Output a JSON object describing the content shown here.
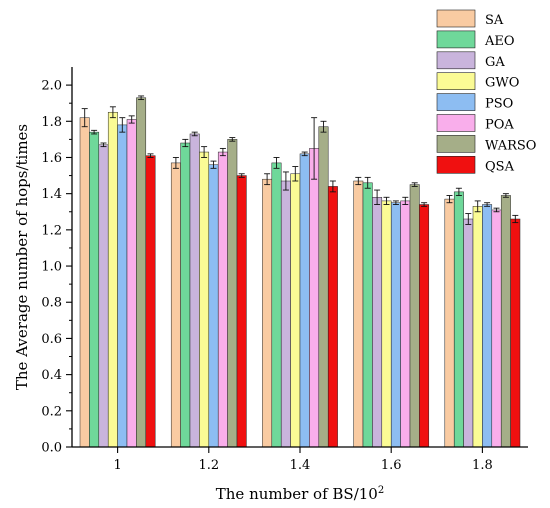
{
  "chart_data": {
    "type": "bar",
    "title": "",
    "xlabel": "The number of BS/10",
    "xlabel_superscript": "2",
    "ylabel": "The Average number of hops/times",
    "ylim": [
      0,
      2.1
    ],
    "yticks": [
      "0.0",
      "0.2",
      "0.4",
      "0.6",
      "0.8",
      "1.0",
      "1.2",
      "1.4",
      "1.6",
      "1.8",
      "2.0"
    ],
    "categories": [
      "1",
      "1.2",
      "1.4",
      "1.6",
      "1.8"
    ],
    "legend_position": "top-right",
    "grid": false,
    "error_bars": true,
    "series": [
      {
        "name": "SA",
        "color": "#F9CBA2",
        "values": [
          1.82,
          1.57,
          1.48,
          1.47,
          1.37
        ],
        "errors": [
          0.05,
          0.03,
          0.03,
          0.02,
          0.02
        ]
      },
      {
        "name": "AEO",
        "color": "#6FD89A",
        "values": [
          1.74,
          1.68,
          1.57,
          1.46,
          1.41
        ],
        "errors": [
          0.01,
          0.02,
          0.03,
          0.03,
          0.02
        ]
      },
      {
        "name": "GA",
        "color": "#C9B4DC",
        "values": [
          1.67,
          1.73,
          1.47,
          1.38,
          1.26
        ],
        "errors": [
          0.01,
          0.01,
          0.05,
          0.04,
          0.03
        ]
      },
      {
        "name": "GWO",
        "color": "#FBFB95",
        "values": [
          1.85,
          1.63,
          1.51,
          1.36,
          1.33
        ],
        "errors": [
          0.03,
          0.03,
          0.04,
          0.02,
          0.03
        ]
      },
      {
        "name": "PSO",
        "color": "#8DBDF2",
        "values": [
          1.78,
          1.56,
          1.62,
          1.35,
          1.34
        ],
        "errors": [
          0.04,
          0.02,
          0.01,
          0.01,
          0.01
        ]
      },
      {
        "name": "POA",
        "color": "#F9AEEB",
        "values": [
          1.81,
          1.63,
          1.65,
          1.36,
          1.31
        ],
        "errors": [
          0.02,
          0.02,
          0.17,
          0.02,
          0.01
        ]
      },
      {
        "name": "WARSO",
        "color": "#A5AE88",
        "values": [
          1.93,
          1.7,
          1.77,
          1.45,
          1.39
        ],
        "errors": [
          0.01,
          0.01,
          0.03,
          0.01,
          0.01
        ]
      },
      {
        "name": "QSA",
        "color": "#F01010",
        "values": [
          1.61,
          1.5,
          1.44,
          1.34,
          1.26
        ],
        "errors": [
          0.01,
          0.01,
          0.03,
          0.01,
          0.02
        ]
      }
    ]
  }
}
